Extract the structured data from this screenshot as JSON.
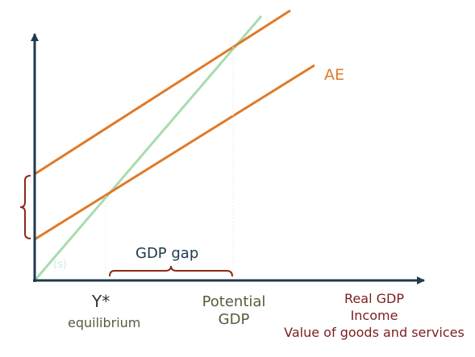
{
  "labels": {
    "ae": "AE",
    "gdp_gap": "GDP gap",
    "y_star": "Y*",
    "equilibrium": "equilibrium",
    "potential": "Potential",
    "potential_gdp": "GDP",
    "xaxis_line1": "Real GDP",
    "xaxis_line2": "Income",
    "xaxis_line3": "Value of goods and services",
    "faint_s": "(s)"
  },
  "colors": {
    "axis": "#1f3a4d",
    "ae_line": "#e07a28",
    "line_45": "#a8dcb0",
    "brace": "#8b2a14"
  }
}
